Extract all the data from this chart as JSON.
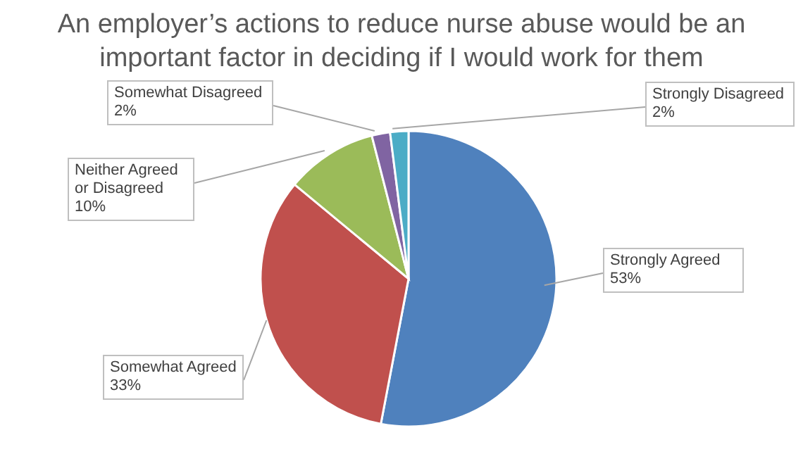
{
  "chart_data": {
    "type": "pie",
    "title": "An employer’s actions to reduce nurse abuse would be an important factor in deciding if I would work for them",
    "categories": [
      "Strongly Agreed",
      "Somewhat Agreed",
      "Neither Agreed or Disagreed",
      "Somewhat Disagreed",
      "Strongly Disagreed"
    ],
    "values": [
      53,
      33,
      10,
      2,
      2
    ],
    "value_labels": [
      "53%",
      "33%",
      "10%",
      "2%",
      "2%"
    ],
    "colors": [
      "#4f81bd",
      "#c0504d",
      "#9bbb59",
      "#8064a2",
      "#4bacc6"
    ],
    "legend": false
  }
}
